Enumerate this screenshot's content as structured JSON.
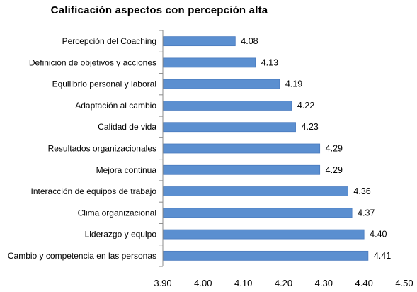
{
  "chart_data": {
    "type": "bar",
    "orientation": "horizontal",
    "title": "Calificación aspectos con percepción alta",
    "categories": [
      "Percepción del Coaching",
      "Definición de objetivos y acciones",
      "Equilibrio personal y laboral",
      "Adaptación al cambio",
      "Calidad de vida",
      "Resultados organizacionales",
      "Mejora continua",
      "Interacción de equipos de trabajo",
      "Clima organizacional",
      "Liderazgo y equipo",
      "Cambio y competencia en las personas"
    ],
    "values": [
      4.08,
      4.13,
      4.19,
      4.22,
      4.23,
      4.29,
      4.29,
      4.36,
      4.37,
      4.4,
      4.41
    ],
    "value_labels": [
      "4.08",
      "4.13",
      "4.19",
      "4.22",
      "4.23",
      "4.29",
      "4.29",
      "4.36",
      "4.37",
      "4.40",
      "4.41"
    ],
    "xlim": [
      3.9,
      4.5
    ],
    "x_ticks": [
      3.9,
      4.0,
      4.1,
      4.2,
      4.3,
      4.4,
      4.5
    ],
    "x_tick_labels": [
      "3.90",
      "4.00",
      "4.10",
      "4.20",
      "4.30",
      "4.40",
      "4.50"
    ],
    "bar_color": "#5b8fd0",
    "bar_edge_color": "#4a7bbf",
    "axis_color": "#8c8c8c",
    "grid": false,
    "legend": "none"
  }
}
